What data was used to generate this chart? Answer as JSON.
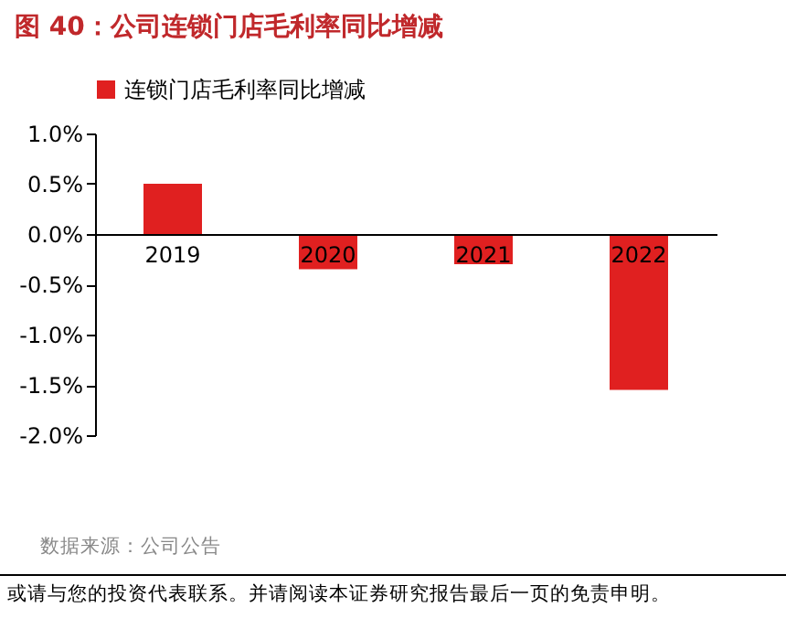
{
  "chart_data": {
    "type": "bar",
    "title": "图 40：公司连锁门店毛利率同比增减",
    "categories": [
      "2019",
      "2020",
      "2021",
      "2022"
    ],
    "series": [
      {
        "name": "连锁门店毛利率同比增减",
        "color": "#e02020",
        "values": [
          0.5,
          -0.35,
          -0.3,
          -1.55
        ]
      }
    ],
    "ylim": [
      -2,
      1
    ],
    "yticks": [
      {
        "value": -2,
        "label": "-2.0%"
      },
      {
        "value": -1.5,
        "label": "-1.5%"
      },
      {
        "value": -1,
        "label": "-1.0%"
      },
      {
        "value": -0.5,
        "label": "-0.5%"
      },
      {
        "value": 0,
        "label": "0.0%"
      },
      {
        "value": 0.5,
        "label": "0.5%"
      },
      {
        "value": 1,
        "label": "1.0%"
      }
    ],
    "legend": "top",
    "annotations": [
      "数据来源：公司公告",
      "或请与您的投资代表联系。并请阅读本证券研究报告最后一页的免责申明。"
    ]
  }
}
